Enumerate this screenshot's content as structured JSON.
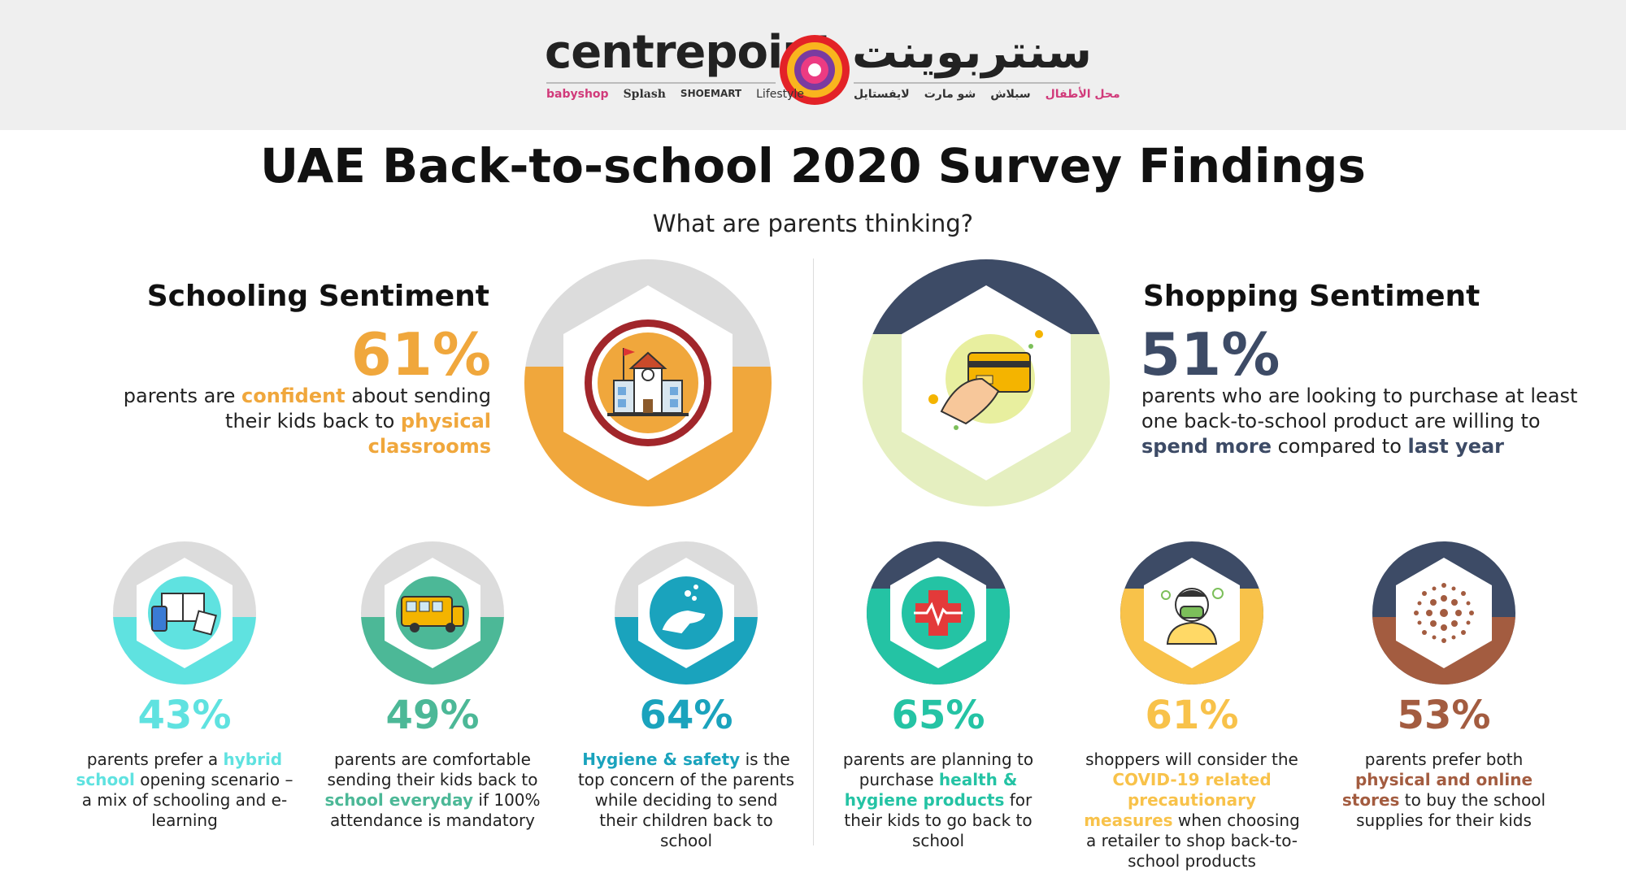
{
  "header": {
    "logo_en": "centrepoint",
    "logo_ar": "سنتربوينت",
    "brands_en": [
      "babyshop",
      "Splash",
      "SHOEMART",
      "Lifestyle"
    ],
    "brands_ar": [
      "لايفستايل",
      "شو مارت",
      "سبلاش",
      "محل الأطفال"
    ]
  },
  "title": "UAE Back-to-school 2020 Survey Findings",
  "subtitle": "What are parents thinking?",
  "schooling": {
    "heading": "Schooling Sentiment",
    "pct": "61%",
    "text_a": "parents are ",
    "text_b": "confident",
    "text_c": " about sending their kids back to ",
    "text_d": "physical classrooms"
  },
  "shopping": {
    "heading": "Shopping Sentiment",
    "pct": "51%",
    "text_a": "parents who are looking to purchase at least one back-to-school product are willing to ",
    "text_b": "spend more",
    "text_c": " compared to ",
    "text_d": "last year"
  },
  "stats": [
    {
      "pct": "43%",
      "a": "parents prefer a ",
      "b": "hybrid school",
      "c": " opening scenario – a mix of schooling and e-learning",
      "color": "#5fe2e0",
      "icon": "books-tablet-icon"
    },
    {
      "pct": "49%",
      "a": "parents are comfortable sending their kids back to ",
      "b": "school everyday",
      "c": " if 100% attendance is mandatory",
      "color": "#4cb897",
      "icon": "school-bus-icon"
    },
    {
      "pct": "64%",
      "a": "",
      "b": "Hygiene & safety",
      "c": " is the top concern of the parents while deciding to send their children back to school",
      "color": "#1aa3bd",
      "icon": "hand-wash-icon"
    },
    {
      "pct": "65%",
      "a": "parents are planning to purchase ",
      "b": "health & hygiene products",
      "c": " for their kids to go back to school",
      "color": "#24c3a4",
      "icon": "medical-cross-icon"
    },
    {
      "pct": "61%",
      "a": "shoppers will consider the ",
      "b": "COVID-19 related precautionary measures",
      "c": " when choosing a retailer to shop back-to-school products",
      "color": "#f8c24a",
      "icon": "masked-person-icon"
    },
    {
      "pct": "53%",
      "a": "parents prefer both ",
      "b": "physical and online stores",
      "c": " to buy the school supplies for their kids",
      "color": "#a35c40",
      "icon": "virus-dots-icon"
    }
  ],
  "colors": {
    "orange": "#f0a73c",
    "navy": "#3d4b66",
    "lightgreen": "#e5efc0",
    "grey": "#dcdcdc"
  }
}
